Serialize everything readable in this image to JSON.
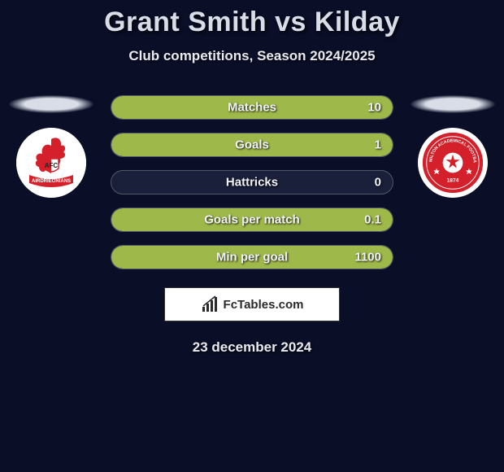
{
  "title": "Grant Smith vs Kilday",
  "subtitle": "Club competitions, Season 2024/2025",
  "date": "23 december 2024",
  "brand": "FcTables.com",
  "colors": {
    "background": "#0a0e27",
    "pill_bg": "#1a1f3a",
    "pill_fill": "#9fb84a",
    "pill_border": "rgba(255,255,255,0.25)",
    "text": "#f0f2f8",
    "title": "#d8dde8",
    "badge_left_accent": "#d4202a",
    "badge_right_bg": "#d4202a",
    "player_shadow_left": "#d8dde8",
    "player_shadow_right": "#d8dde8"
  },
  "layout": {
    "pill_height": 30,
    "pill_radius": 15,
    "pill_gap": 16,
    "title_fontsize": 34,
    "subtitle_fontsize": 17,
    "stat_fontsize": 15
  },
  "stats": [
    {
      "label": "Matches",
      "right_value": "10",
      "right_fill_pct": 100
    },
    {
      "label": "Goals",
      "right_value": "1",
      "right_fill_pct": 100
    },
    {
      "label": "Hattricks",
      "right_value": "0",
      "right_fill_pct": 0
    },
    {
      "label": "Goals per match",
      "right_value": "0.1",
      "right_fill_pct": 100
    },
    {
      "label": "Min per goal",
      "right_value": "1100",
      "right_fill_pct": 100
    }
  ],
  "badges": {
    "left": {
      "name": "AFC",
      "text_top": "AFC",
      "banner": "AIRDRIEONIANS"
    },
    "right": {
      "name": "Hamilton",
      "year": "1874"
    }
  }
}
